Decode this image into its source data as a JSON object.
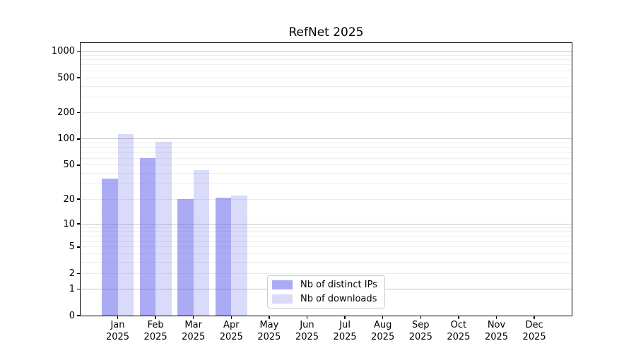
{
  "chart_data": {
    "type": "bar",
    "title": "RefNet 2025",
    "categories": [
      "Jan 2025",
      "Feb 2025",
      "Mar 2025",
      "Apr 2025",
      "May 2025",
      "Jun 2025",
      "Jul 2025",
      "Aug 2025",
      "Sep 2025",
      "Oct 2025",
      "Nov 2025",
      "Dec 2025"
    ],
    "series": [
      {
        "name": "Nb of distinct IPs",
        "color": "#6666ed8c",
        "solid_color": "#ababf5",
        "values": [
          35,
          60,
          20,
          21,
          null,
          null,
          null,
          null,
          null,
          null,
          null,
          null
        ]
      },
      {
        "name": "Nb of downloads",
        "color": "#6b6beb40",
        "solid_color": "#dadafa",
        "values": [
          114,
          93,
          44,
          22,
          null,
          null,
          null,
          null,
          null,
          null,
          null,
          null
        ]
      }
    ],
    "yscale": "log1p",
    "ylim": [
      0,
      1240
    ],
    "yticks": [
      0,
      1,
      2,
      5,
      10,
      20,
      50,
      100,
      200,
      500,
      1000
    ],
    "grid": {
      "major_values": [
        1,
        10,
        100,
        1000
      ],
      "minor": "2-9 per decade",
      "on": true
    },
    "legend_position": "bottom-center-inside",
    "xlabel": "",
    "ylabel": ""
  },
  "colors": {
    "background": "#ffffff",
    "axis": "#000000",
    "major_grid": "#c6c6c6",
    "minor_grid": "#ededed",
    "legend_border": "#cccccc"
  }
}
